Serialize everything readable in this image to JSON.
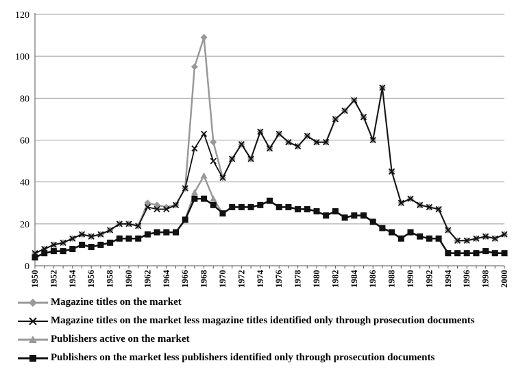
{
  "chart_data": {
    "type": "line",
    "x": [
      1950,
      1951,
      1952,
      1953,
      1954,
      1955,
      1956,
      1957,
      1958,
      1959,
      1960,
      1961,
      1962,
      1963,
      1964,
      1965,
      1966,
      1967,
      1968,
      1969,
      1970,
      1971,
      1972,
      1973,
      1974,
      1975,
      1976,
      1977,
      1978,
      1979,
      1980,
      1981,
      1982,
      1983,
      1984,
      1985,
      1986,
      1987,
      1988,
      1989,
      1990,
      1991,
      1992,
      1993,
      1994,
      1995,
      1996,
      1997,
      1998,
      1999,
      2000
    ],
    "x_tick_labels": [
      "1950",
      "1952",
      "1954",
      "1956",
      "1958",
      "1960",
      "1962",
      "1964",
      "1966",
      "1968",
      "1970",
      "1972",
      "1974",
      "1976",
      "1978",
      "1980",
      "1982",
      "1984",
      "1986",
      "1988",
      "1990",
      "1992",
      "1994",
      "1996",
      "1998",
      "2000"
    ],
    "ylim": [
      0,
      120
    ],
    "y_ticks": [
      0,
      20,
      40,
      60,
      80,
      100,
      120
    ],
    "grid": "horizontal",
    "legend_position": "bottom",
    "title": "",
    "xlabel": "",
    "ylabel": "",
    "series": [
      {
        "name": "Magazine titles on the market",
        "color": "#999999",
        "marker": "diamond",
        "values": [
          6,
          8,
          10,
          11,
          13,
          15,
          14,
          15,
          17,
          20,
          20,
          19,
          30,
          29,
          28,
          29,
          37,
          95,
          109,
          59,
          42,
          51,
          58,
          51,
          64,
          56,
          63,
          59,
          57,
          62,
          59,
          59,
          70,
          74,
          79,
          71,
          60,
          85,
          45,
          30,
          32,
          29,
          28,
          27,
          17,
          12,
          12,
          13,
          14,
          13,
          15
        ]
      },
      {
        "name": "Magazine titles on the market less magazine titles identified only through prosecution documents",
        "color": "#111111",
        "marker": "x",
        "values": [
          6,
          8,
          10,
          11,
          13,
          15,
          14,
          15,
          17,
          20,
          20,
          19,
          28,
          27,
          27,
          29,
          37,
          56,
          63,
          50,
          42,
          51,
          58,
          51,
          64,
          56,
          63,
          59,
          57,
          62,
          59,
          59,
          70,
          74,
          79,
          71,
          60,
          85,
          45,
          30,
          32,
          29,
          28,
          27,
          17,
          12,
          12,
          13,
          14,
          13,
          15
        ]
      },
      {
        "name": "Publishers active on the market",
        "color": "#999999",
        "marker": "triangle",
        "values": [
          4,
          6,
          7,
          7,
          8,
          10,
          9,
          10,
          11,
          13,
          13,
          13,
          15,
          16,
          16,
          16,
          22,
          35,
          43,
          32,
          25,
          28,
          28,
          28,
          29,
          31,
          28,
          28,
          27,
          27,
          26,
          24,
          26,
          23,
          24,
          24,
          21,
          18,
          16,
          13,
          16,
          14,
          13,
          13,
          6,
          6,
          6,
          6,
          7,
          6,
          6
        ]
      },
      {
        "name": "Publishers on the market less publishers identified only through prosecution documents",
        "color": "#111111",
        "marker": "square",
        "values": [
          4,
          6,
          7,
          7,
          8,
          10,
          9,
          10,
          11,
          13,
          13,
          13,
          15,
          16,
          16,
          16,
          22,
          32,
          32,
          29,
          25,
          28,
          28,
          28,
          29,
          31,
          28,
          28,
          27,
          27,
          26,
          24,
          26,
          23,
          24,
          24,
          21,
          18,
          16,
          13,
          16,
          14,
          13,
          13,
          6,
          6,
          6,
          6,
          7,
          6,
          6
        ]
      }
    ]
  }
}
